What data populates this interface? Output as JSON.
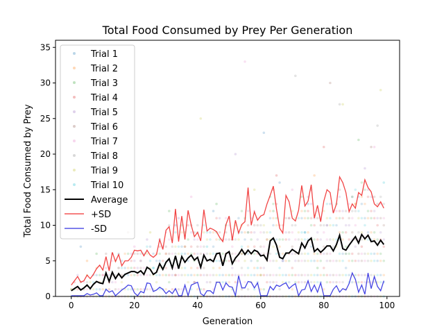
{
  "chart_data": {
    "type": "line",
    "title": "Total Food Consumed by Prey Per Generation",
    "xlabel": "Generation",
    "ylabel": "Total Food Consumed by Prey",
    "xlim": [
      -5,
      104
    ],
    "ylim": [
      0,
      36
    ],
    "xticks": [
      0,
      20,
      40,
      60,
      80,
      100
    ],
    "yticks": [
      0,
      5,
      10,
      15,
      20,
      25,
      30,
      35
    ],
    "grid": false,
    "legend_position": "top-left",
    "x": [
      0,
      1,
      2,
      3,
      4,
      5,
      6,
      7,
      8,
      9,
      10,
      11,
      12,
      13,
      14,
      15,
      16,
      17,
      18,
      19,
      20,
      21,
      22,
      23,
      24,
      25,
      26,
      27,
      28,
      29,
      30,
      31,
      32,
      33,
      34,
      35,
      36,
      37,
      38,
      39,
      40,
      41,
      42,
      43,
      44,
      45,
      46,
      47,
      48,
      49,
      50,
      51,
      52,
      53,
      54,
      55,
      56,
      57,
      58,
      59,
      60,
      61,
      62,
      63,
      64,
      65,
      66,
      67,
      68,
      69,
      70,
      71,
      72,
      73,
      74,
      75,
      76,
      77,
      78,
      79,
      80,
      81,
      82,
      83,
      84,
      85,
      86,
      87,
      88,
      89,
      90,
      91,
      92,
      93,
      94,
      95,
      96,
      97,
      98,
      99
    ],
    "series": [
      {
        "name": "Average",
        "color": "#000000",
        "values": [
          0.8,
          1.1,
          1.4,
          0.9,
          1.2,
          1.6,
          1.1,
          1.7,
          2.1,
          1.9,
          1.8,
          3.3,
          2.1,
          3.4,
          2.5,
          3.2,
          2.6,
          3.1,
          3.3,
          3.5,
          3.5,
          3.3,
          3.6,
          3.1,
          4.1,
          3.8,
          3.1,
          3.4,
          4.6,
          3.8,
          4.8,
          5.3,
          4.0,
          5.7,
          3.9,
          5.6,
          4.8,
          5.4,
          5.8,
          5.1,
          5.5,
          4.1,
          5.8,
          5.0,
          5.2,
          4.9,
          6.0,
          6.1,
          4.3,
          6.0,
          6.3,
          4.6,
          5.4,
          5.9,
          6.6,
          5.9,
          6.5,
          6.0,
          6.5,
          6.3,
          5.7,
          5.8,
          5.1,
          7.8,
          8.2,
          7.2,
          5.5,
          5.3,
          6.1,
          6.1,
          6.6,
          6.3,
          6.0,
          7.5,
          6.8,
          7.8,
          8.2,
          6.3,
          6.7,
          6.2,
          6.6,
          7.1,
          7.1,
          6.4,
          7.3,
          8.6,
          6.7,
          6.5,
          7.2,
          7.8,
          8.4,
          7.5,
          8.7,
          8.1,
          8.6,
          7.7,
          7.8,
          7.2,
          7.9,
          7.3
        ]
      },
      {
        "name": "+SD",
        "color": "#f03030",
        "values": [
          1.6,
          2.2,
          2.8,
          2.0,
          2.2,
          3.0,
          2.5,
          3.1,
          3.9,
          4.4,
          3.7,
          5.6,
          3.6,
          6.2,
          4.9,
          5.9,
          4.3,
          5.0,
          5.0,
          5.5,
          6.5,
          6.4,
          6.5,
          5.7,
          6.5,
          5.8,
          5.5,
          5.9,
          8.0,
          6.6,
          9.3,
          9.8,
          7.5,
          12.3,
          7.7,
          11.3,
          8.0,
          12.1,
          10.0,
          8.4,
          9.0,
          7.8,
          12.2,
          9.2,
          9.6,
          9.4,
          9.1,
          8.3,
          7.7,
          10.1,
          11.3,
          7.9,
          10.7,
          8.9,
          10.1,
          10.5,
          15.3,
          10.0,
          11.9,
          10.7,
          11.3,
          11.5,
          13.0,
          14.2,
          15.5,
          12.3,
          9.6,
          8.9,
          14.2,
          13.3,
          11.0,
          10.6,
          12.1,
          15.6,
          12.7,
          13.4,
          15.7,
          11.0,
          12.8,
          10.5,
          13.4,
          15.0,
          14.6,
          11.7,
          13.0,
          16.8,
          16.0,
          14.6,
          11.9,
          13.0,
          12.4,
          14.6,
          14.2,
          16.4,
          15.3,
          14.7,
          13.0,
          12.6,
          13.3,
          12.4
        ]
      },
      {
        "name": "-SD",
        "color": "#3030e0",
        "values": [
          0.1,
          0.1,
          0.1,
          0.1,
          0.1,
          0.4,
          0.2,
          0.3,
          0.5,
          0.1,
          0.1,
          1.0,
          0.6,
          0.8,
          0.1,
          0.5,
          0.9,
          1.2,
          1.6,
          1.5,
          0.5,
          0.1,
          0.7,
          0.5,
          1.9,
          1.8,
          0.7,
          0.9,
          1.3,
          1.0,
          0.4,
          0.8,
          0.4,
          1.1,
          0.1,
          0.1,
          1.6,
          0.1,
          1.6,
          1.8,
          2.0,
          0.4,
          0.1,
          0.8,
          0.8,
          0.4,
          2.0,
          2.0,
          0.9,
          1.9,
          1.4,
          1.3,
          0.1,
          2.9,
          1.2,
          1.2,
          2.1,
          2.0,
          1.2,
          1.9,
          0.1,
          0.1,
          0.1,
          1.4,
          0.9,
          1.6,
          1.4,
          1.7,
          1.9,
          1.1,
          1.5,
          1.8,
          0.1,
          0.9,
          1.0,
          2.2,
          0.7,
          1.6,
          0.6,
          1.9,
          0.1,
          0.1,
          0.1,
          1.0,
          1.5,
          0.6,
          1.1,
          0.9,
          1.8,
          3.3,
          2.4,
          0.6,
          1.6,
          0.3,
          3.3,
          1.1,
          2.8,
          1.4,
          0.8,
          2.2
        ]
      }
    ],
    "scatter_series": [
      {
        "name": "Trial 1",
        "color": "#1f77b4"
      },
      {
        "name": "Trial 2",
        "color": "#ff7f0e"
      },
      {
        "name": "Trial 3",
        "color": "#2ca02c"
      },
      {
        "name": "Trial 4",
        "color": "#d62728"
      },
      {
        "name": "Trial 5",
        "color": "#9467bd"
      },
      {
        "name": "Trial 6",
        "color": "#8c564b"
      },
      {
        "name": "Trial 7",
        "color": "#e377c2"
      },
      {
        "name": "Trial 8",
        "color": "#7f7f7f"
      },
      {
        "name": "Trial 9",
        "color": "#bcbd22"
      },
      {
        "name": "Trial 10",
        "color": "#17becf"
      }
    ],
    "scatter_points": [
      [
        3,
        7
      ],
      [
        5,
        5
      ],
      [
        8,
        6
      ],
      [
        12,
        2
      ],
      [
        15,
        4
      ],
      [
        18,
        9
      ],
      [
        20,
        7
      ],
      [
        22,
        5
      ],
      [
        25,
        9
      ],
      [
        26,
        4
      ],
      [
        28,
        5
      ],
      [
        30,
        6
      ],
      [
        31,
        12
      ],
      [
        33,
        3
      ],
      [
        34,
        11
      ],
      [
        36,
        7
      ],
      [
        38,
        14
      ],
      [
        40,
        9
      ],
      [
        41,
        25
      ],
      [
        43,
        7
      ],
      [
        45,
        12
      ],
      [
        47,
        4
      ],
      [
        49,
        10
      ],
      [
        51,
        8
      ],
      [
        52,
        20
      ],
      [
        54,
        6
      ],
      [
        55,
        33
      ],
      [
        56,
        9
      ],
      [
        58,
        15
      ],
      [
        59,
        4
      ],
      [
        61,
        23
      ],
      [
        62,
        8
      ],
      [
        64,
        12
      ],
      [
        65,
        17
      ],
      [
        67,
        5
      ],
      [
        69,
        11
      ],
      [
        70,
        15
      ],
      [
        71,
        31
      ],
      [
        72,
        6
      ],
      [
        74,
        9
      ],
      [
        75,
        13
      ],
      [
        77,
        17
      ],
      [
        78,
        4
      ],
      [
        80,
        21
      ],
      [
        81,
        10
      ],
      [
        82,
        30
      ],
      [
        84,
        12
      ],
      [
        85,
        27
      ],
      [
        86,
        27
      ],
      [
        87,
        6
      ],
      [
        89,
        14
      ],
      [
        90,
        13
      ],
      [
        91,
        22
      ],
      [
        92,
        7
      ],
      [
        93,
        18
      ],
      [
        95,
        21
      ],
      [
        96,
        21
      ],
      [
        97,
        24
      ],
      [
        98,
        29
      ],
      [
        99,
        16
      ],
      [
        66,
        16
      ],
      [
        60,
        3
      ],
      [
        46,
        13
      ],
      [
        39,
        2
      ],
      [
        24,
        8
      ],
      [
        16,
        3
      ],
      [
        10,
        3
      ]
    ]
  }
}
